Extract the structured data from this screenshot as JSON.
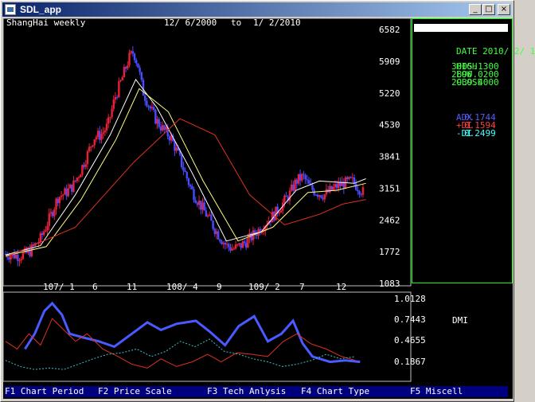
{
  "window": {
    "title": "SDL_app",
    "minimize": "_",
    "maximize": "□",
    "close": "×"
  },
  "chart_header": {
    "name": "ShangHai weekly",
    "start": "12/ 6/2000",
    "to": "to",
    "end": "1/ 2/2010"
  },
  "info_panel": {
    "date_label": "DATE",
    "date": "2010/ 2/ 1",
    "rows": [
      {
        "label": "HIGH",
        "value": "3005.1300"
      },
      {
        "label": "LOW",
        "value": "2890.0200"
      },
      {
        "label": "CLOSE",
        "value": "2939.4000"
      }
    ],
    "dmi": [
      {
        "label": "ADX",
        "value": "0.1744",
        "color": "#5a5aff"
      },
      {
        "label": "+DI",
        "value": "0.1594",
        "color": "#ff4040"
      },
      {
        "label": "-DI",
        "value": "0.2499",
        "color": "#40ffff"
      }
    ]
  },
  "sub_chart_label": "DMI",
  "function_keys": [
    {
      "label": "F1 Chart Period"
    },
    {
      "label": "F2 Price Scale"
    },
    {
      "label": "F3 Tech Anlysis"
    },
    {
      "label": "F4 Chart Type"
    },
    {
      "label": "F5 Miscell"
    }
  ],
  "colors": {
    "up": "#e8203a",
    "down": "#4a4aff",
    "ma_short": "#ffffff",
    "ma_mid": "#ffff80",
    "ma_long": "#e03020",
    "adx": "#4a5aff",
    "plus_di": "#e03020",
    "minus_di": "#40c0c0"
  },
  "chart_data": [
    {
      "type": "candlestick",
      "title": "ShangHai weekly",
      "y_ticks": [
        "6582",
        "5909",
        "5220",
        "4530",
        "3841",
        "3151",
        "2462",
        "1772",
        "1083"
      ],
      "ylim": [
        1083,
        6582
      ],
      "x_labels": [
        "107/ 1",
        "6",
        "11",
        "108/ 4",
        "9",
        "109/ 2",
        "7",
        "12"
      ],
      "close_path": [
        [
          0,
          1720
        ],
        [
          12,
          1680
        ],
        [
          20,
          1750
        ],
        [
          30,
          2050
        ],
        [
          38,
          2500
        ],
        [
          45,
          2950
        ],
        [
          52,
          3050
        ],
        [
          58,
          3200
        ],
        [
          64,
          3500
        ],
        [
          70,
          3850
        ],
        [
          76,
          4250
        ],
        [
          82,
          4300
        ],
        [
          88,
          4500
        ],
        [
          94,
          5100
        ],
        [
          100,
          5500
        ],
        [
          106,
          5950
        ],
        [
          110,
          6100
        ],
        [
          114,
          5800
        ],
        [
          118,
          5250
        ],
        [
          124,
          4900
        ],
        [
          130,
          4600
        ],
        [
          136,
          4400
        ],
        [
          142,
          4250
        ],
        [
          148,
          3900
        ],
        [
          154,
          3500
        ],
        [
          160,
          3100
        ],
        [
          166,
          2850
        ],
        [
          172,
          2600
        ],
        [
          178,
          2350
        ],
        [
          184,
          2100
        ],
        [
          190,
          1900
        ],
        [
          196,
          1830
        ],
        [
          202,
          1900
        ],
        [
          208,
          2000
        ],
        [
          214,
          2150
        ],
        [
          220,
          2300
        ],
        [
          226,
          2450
        ],
        [
          232,
          2600
        ],
        [
          238,
          2800
        ],
        [
          244,
          3000
        ],
        [
          250,
          3300
        ],
        [
          256,
          3400
        ],
        [
          262,
          3150
        ],
        [
          268,
          3050
        ],
        [
          274,
          3000
        ],
        [
          280,
          3100
        ],
        [
          286,
          3200
        ],
        [
          292,
          3250
        ],
        [
          298,
          3300
        ],
        [
          304,
          3150
        ],
        [
          308,
          3050
        ]
      ],
      "moving_averages": [
        {
          "name": "short",
          "points": [
            [
              0,
              1700
            ],
            [
              30,
              1900
            ],
            [
              60,
              3000
            ],
            [
              90,
              4300
            ],
            [
              112,
              5500
            ],
            [
              130,
              4900
            ],
            [
              160,
              3500
            ],
            [
              190,
              2000
            ],
            [
              220,
              2200
            ],
            [
              250,
              3100
            ],
            [
              270,
              3300
            ],
            [
              300,
              3250
            ],
            [
              310,
              3350
            ]
          ]
        },
        {
          "name": "mid",
          "points": [
            [
              0,
              1680
            ],
            [
              35,
              1880
            ],
            [
              65,
              2900
            ],
            [
              95,
              4200
            ],
            [
              115,
              5300
            ],
            [
              140,
              4800
            ],
            [
              170,
              3300
            ],
            [
              200,
              2000
            ],
            [
              230,
              2300
            ],
            [
              260,
              3050
            ],
            [
              285,
              3100
            ],
            [
              310,
              3250
            ]
          ]
        },
        {
          "name": "long",
          "points": [
            [
              0,
              1650
            ],
            [
              60,
              2300
            ],
            [
              110,
              3700
            ],
            [
              150,
              4650
            ],
            [
              180,
              4300
            ],
            [
              210,
              3000
            ],
            [
              240,
              2350
            ],
            [
              270,
              2580
            ],
            [
              290,
              2800
            ],
            [
              310,
              2900
            ]
          ]
        }
      ]
    },
    {
      "type": "line",
      "title": "DMI",
      "y_ticks": [
        "1.0128",
        "0.7443",
        "0.4655",
        "0.1867"
      ],
      "series": [
        {
          "name": "ADX",
          "points": [
            [
              20,
              0.35
            ],
            [
              30,
              0.55
            ],
            [
              40,
              0.85
            ],
            [
              48,
              0.95
            ],
            [
              58,
              0.8
            ],
            [
              66,
              0.55
            ],
            [
              80,
              0.5
            ],
            [
              96,
              0.45
            ],
            [
              112,
              0.38
            ],
            [
              130,
              0.55
            ],
            [
              146,
              0.7
            ],
            [
              160,
              0.6
            ],
            [
              176,
              0.68
            ],
            [
              196,
              0.72
            ],
            [
              210,
              0.58
            ],
            [
              226,
              0.4
            ],
            [
              240,
              0.65
            ],
            [
              256,
              0.78
            ],
            [
              270,
              0.45
            ],
            [
              284,
              0.55
            ],
            [
              296,
              0.72
            ],
            [
              306,
              0.42
            ],
            [
              316,
              0.25
            ],
            [
              334,
              0.18
            ],
            [
              350,
              0.2
            ],
            [
              365,
              0.18
            ]
          ]
        },
        {
          "name": "+DI",
          "points": [
            [
              0,
              0.45
            ],
            [
              12,
              0.35
            ],
            [
              24,
              0.55
            ],
            [
              36,
              0.4
            ],
            [
              48,
              0.75
            ],
            [
              60,
              0.6
            ],
            [
              72,
              0.45
            ],
            [
              84,
              0.55
            ],
            [
              100,
              0.35
            ],
            [
              116,
              0.25
            ],
            [
              130,
              0.15
            ],
            [
              146,
              0.1
            ],
            [
              160,
              0.22
            ],
            [
              176,
              0.12
            ],
            [
              192,
              0.18
            ],
            [
              208,
              0.28
            ],
            [
              222,
              0.18
            ],
            [
              238,
              0.3
            ],
            [
              254,
              0.28
            ],
            [
              270,
              0.25
            ],
            [
              286,
              0.45
            ],
            [
              300,
              0.55
            ],
            [
              314,
              0.42
            ],
            [
              330,
              0.35
            ],
            [
              346,
              0.25
            ],
            [
              360,
              0.2
            ]
          ]
        },
        {
          "name": "-DI",
          "points": [
            [
              0,
              0.2
            ],
            [
              15,
              0.12
            ],
            [
              30,
              0.08
            ],
            [
              45,
              0.1
            ],
            [
              60,
              0.08
            ],
            [
              75,
              0.15
            ],
            [
              90,
              0.22
            ],
            [
              105,
              0.28
            ],
            [
              120,
              0.3
            ],
            [
              135,
              0.35
            ],
            [
              150,
              0.25
            ],
            [
              165,
              0.32
            ],
            [
              180,
              0.45
            ],
            [
              195,
              0.38
            ],
            [
              210,
              0.48
            ],
            [
              225,
              0.32
            ],
            [
              240,
              0.28
            ],
            [
              255,
              0.22
            ],
            [
              270,
              0.18
            ],
            [
              285,
              0.12
            ],
            [
              300,
              0.15
            ],
            [
              315,
              0.2
            ],
            [
              330,
              0.28
            ],
            [
              345,
              0.22
            ],
            [
              360,
              0.25
            ]
          ]
        }
      ]
    }
  ]
}
